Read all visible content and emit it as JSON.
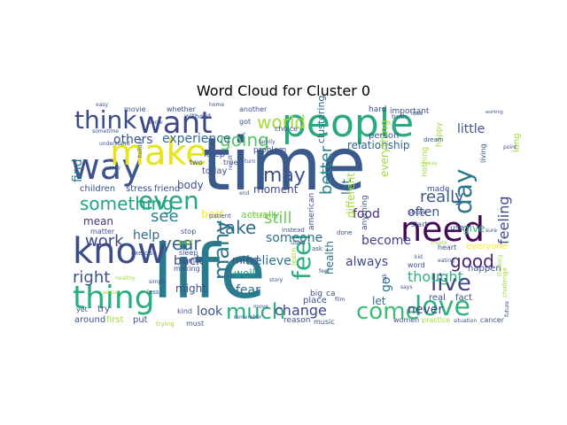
{
  "chart_data": {
    "type": "wordcloud",
    "title": "Word Cloud for Cluster 0",
    "background": "#ffffff",
    "colormap": "viridis",
    "words": [
      {
        "text": "time",
        "color": "#3b5a8c"
      },
      {
        "text": "life",
        "color": "#2a7b8e"
      },
      {
        "text": "people",
        "color": "#2aa87e"
      },
      {
        "text": "way",
        "color": "#3b528b"
      },
      {
        "text": "make",
        "color": "#e8e41a"
      },
      {
        "text": "know",
        "color": "#3a4d88"
      },
      {
        "text": "think",
        "color": "#3a4d88"
      },
      {
        "text": "want",
        "color": "#3e4989"
      },
      {
        "text": "need",
        "color": "#440a56"
      },
      {
        "text": "thing",
        "color": "#25b07c"
      },
      {
        "text": "come",
        "color": "#3fbc73"
      },
      {
        "text": "love",
        "color": "#2db27d"
      },
      {
        "text": "day",
        "color": "#2a788e"
      },
      {
        "text": "even",
        "color": "#22a884"
      },
      {
        "text": "feel",
        "color": "#29af7f"
      },
      {
        "text": "live",
        "color": "#404387"
      },
      {
        "text": "much",
        "color": "#29af7f"
      },
      {
        "text": "world",
        "color": "#a5db36"
      },
      {
        "text": "take",
        "color": "#2f6c8e"
      },
      {
        "text": "something",
        "color": "#20a386"
      },
      {
        "text": "going",
        "color": "#55c667"
      },
      {
        "text": "may",
        "color": "#3b528b"
      },
      {
        "text": "work",
        "color": "#3f4788"
      },
      {
        "text": "see",
        "color": "#26828e"
      },
      {
        "text": "year",
        "color": "#34608d"
      },
      {
        "text": "many",
        "color": "#2c738e"
      },
      {
        "text": "good",
        "color": "#482677"
      },
      {
        "text": "really",
        "color": "#38588c"
      },
      {
        "text": "still",
        "color": "#6ece58"
      },
      {
        "text": "change",
        "color": "#3f4788"
      },
      {
        "text": "right",
        "color": "#3a538b"
      },
      {
        "text": "help",
        "color": "#31678e"
      },
      {
        "text": "better",
        "color": "#25858e"
      },
      {
        "text": "find",
        "color": "#2a768e"
      },
      {
        "text": "mean",
        "color": "#46337e"
      },
      {
        "text": "fear",
        "color": "#2c738e"
      },
      {
        "text": "thought",
        "color": "#2db27d"
      },
      {
        "text": "feeling",
        "color": "#3f4788"
      },
      {
        "text": "never",
        "color": "#3f4788"
      },
      {
        "text": "look",
        "color": "#3b528b"
      },
      {
        "text": "experience",
        "color": "#31688e"
      },
      {
        "text": "others",
        "color": "#39568c"
      },
      {
        "text": "well",
        "color": "#1fa088"
      },
      {
        "text": "back",
        "color": "#3e4a89"
      },
      {
        "text": "become",
        "color": "#404387"
      },
      {
        "text": "always",
        "color": "#3f4788"
      },
      {
        "text": "often",
        "color": "#3b528b"
      },
      {
        "text": "believe",
        "color": "#2c728e"
      },
      {
        "text": "someone",
        "color": "#2c728e"
      },
      {
        "text": "moment",
        "color": "#3f4788"
      },
      {
        "text": "relationship",
        "color": "#33638d"
      },
      {
        "text": "little",
        "color": "#3b528b"
      },
      {
        "text": "give",
        "color": "#35b779"
      },
      {
        "text": "let",
        "color": "#2c728e"
      },
      {
        "text": "mind",
        "color": "#3b528b"
      },
      {
        "text": "might",
        "color": "#3b528b"
      },
      {
        "text": "best",
        "color": "#fde725"
      },
      {
        "text": "food",
        "color": "#482878"
      },
      {
        "text": "actually",
        "color": "#6ccd5a"
      },
      {
        "text": "clustering",
        "color": "#31688e"
      },
      {
        "text": "body",
        "color": "#3b528b"
      },
      {
        "text": "health",
        "color": "#2c728e"
      },
      {
        "text": "go",
        "color": "#2c728e"
      },
      {
        "text": "lot",
        "color": "#2c728e"
      },
      {
        "text": "different",
        "color": "#a0da39"
      },
      {
        "text": "everything",
        "color": "#a0da39"
      },
      {
        "text": "everyone",
        "color": "#fde725"
      },
      {
        "text": "happen",
        "color": "#3b528b"
      },
      {
        "text": "place",
        "color": "#3b528b"
      },
      {
        "text": "real",
        "color": "#3b528b"
      },
      {
        "text": "fact",
        "color": "#3b528b"
      },
      {
        "text": "kind",
        "color": "#3b528b"
      },
      {
        "text": "around",
        "color": "#3b528b"
      },
      {
        "text": "first",
        "color": "#a0da39"
      },
      {
        "text": "put",
        "color": "#3b528b"
      },
      {
        "text": "yet",
        "color": "#3b528b"
      },
      {
        "text": "try",
        "color": "#3b528b"
      },
      {
        "text": "children",
        "color": "#3b528b"
      },
      {
        "text": "stress",
        "color": "#3b528b"
      },
      {
        "text": "friend",
        "color": "#3b528b"
      },
      {
        "text": "keep",
        "color": "#3b528b"
      },
      {
        "text": "today",
        "color": "#3b528b"
      },
      {
        "text": "two",
        "color": "#3b528b"
      },
      {
        "text": "true",
        "color": "#3b528b"
      },
      {
        "text": "sleep",
        "color": "#3b528b"
      },
      {
        "text": "making",
        "color": "#3b528b"
      },
      {
        "text": "human",
        "color": "#3b528b"
      },
      {
        "text": "matter",
        "color": "#3b528b"
      },
      {
        "text": "stop",
        "color": "#3b528b"
      },
      {
        "text": "part",
        "color": "#a0da39"
      },
      {
        "text": "problem",
        "color": "#3b528b"
      },
      {
        "text": "choice",
        "color": "#3b528b"
      },
      {
        "text": "another",
        "color": "#3b528b"
      },
      {
        "text": "person",
        "color": "#3b528b"
      },
      {
        "text": "important",
        "color": "#3b528b"
      },
      {
        "text": "hard",
        "color": "#3b528b"
      },
      {
        "text": "movie",
        "color": "#3b528b"
      },
      {
        "text": "whether",
        "color": "#3b528b"
      },
      {
        "text": "without",
        "color": "#3b528b"
      },
      {
        "text": "got",
        "color": "#3b528b"
      },
      {
        "text": "american",
        "color": "#3b528b"
      },
      {
        "text": "anything",
        "color": "#3b528b"
      },
      {
        "text": "made",
        "color": "#3b528b"
      },
      {
        "text": "nothing",
        "color": "#a0da39"
      },
      {
        "text": "living",
        "color": "#3b528b"
      },
      {
        "text": "long",
        "color": "#a0da39"
      },
      {
        "text": "happy",
        "color": "#a0da39"
      },
      {
        "text": "use",
        "color": "#3b528b"
      },
      {
        "text": "word",
        "color": "#3b528b"
      },
      {
        "text": "show",
        "color": "#3b528b"
      },
      {
        "text": "start",
        "color": "#3b528b"
      },
      {
        "text": "heart",
        "color": "#3b528b"
      },
      {
        "text": "done",
        "color": "#3b528b"
      },
      {
        "text": "instead",
        "color": "#3b528b"
      },
      {
        "text": "used",
        "color": "#3b528b"
      },
      {
        "text": "ask",
        "color": "#3b528b"
      },
      {
        "text": "learn",
        "color": "#a0da39"
      },
      {
        "text": "reason",
        "color": "#3b528b"
      },
      {
        "text": "music",
        "color": "#3b528b"
      },
      {
        "text": "women",
        "color": "#3b528b"
      },
      {
        "text": "practice",
        "color": "#a0da39"
      },
      {
        "text": "cancer",
        "color": "#3b528b"
      },
      {
        "text": "must",
        "color": "#3b528b"
      },
      {
        "text": "trying",
        "color": "#a0da39"
      },
      {
        "text": "patient",
        "color": "#3b528b"
      },
      {
        "text": "exercise",
        "color": "#3b528b"
      },
      {
        "text": "healthy",
        "color": "#a0da39"
      },
      {
        "text": "less",
        "color": "#3b528b"
      },
      {
        "text": "simply",
        "color": "#3b528b"
      },
      {
        "text": "sense",
        "color": "#a0da39"
      },
      {
        "text": "easy",
        "color": "#3b528b"
      },
      {
        "text": "sometime",
        "color": "#3b528b"
      },
      {
        "text": "understand",
        "color": "#3b528b"
      },
      {
        "text": "whole",
        "color": "#3b528b"
      },
      {
        "text": "rather",
        "color": "#3b528b"
      },
      {
        "text": "holiday",
        "color": "#3b528b"
      },
      {
        "text": "result",
        "color": "#3b528b"
      },
      {
        "text": "home",
        "color": "#3b528b"
      },
      {
        "text": "family",
        "color": "#3b528b"
      },
      {
        "text": "turn",
        "color": "#3b528b"
      },
      {
        "text": "end",
        "color": "#3b528b"
      },
      {
        "text": "question",
        "color": "#a0da39"
      },
      {
        "text": "story",
        "color": "#3b528b"
      },
      {
        "text": "move",
        "color": "#3b528b"
      },
      {
        "text": "remember",
        "color": "#3b528b"
      },
      {
        "text": "feel",
        "color": "#3b528b"
      },
      {
        "text": "big",
        "color": "#3b528b"
      },
      {
        "text": "ca",
        "color": "#3b528b"
      },
      {
        "text": "film",
        "color": "#3b528b"
      },
      {
        "text": "truth",
        "color": "#3b528b"
      },
      {
        "text": "dream",
        "color": "#3b528b"
      },
      {
        "text": "idea",
        "color": "#3b528b"
      },
      {
        "text": "create",
        "color": "#a0da39"
      },
      {
        "text": "eating",
        "color": "#3b528b"
      },
      {
        "text": "kid",
        "color": "#3b528b"
      },
      {
        "text": "talk",
        "color": "#3b528b"
      },
      {
        "text": "says",
        "color": "#3b528b"
      },
      {
        "text": "future",
        "color": "#3b528b"
      },
      {
        "text": "point",
        "color": "#3b528b"
      },
      {
        "text": "sure",
        "color": "#3b528b"
      },
      {
        "text": "away",
        "color": "#a0da39"
      },
      {
        "text": "working",
        "color": "#3b528b"
      },
      {
        "text": "challenge",
        "color": "#a0da39"
      },
      {
        "text": "thinking",
        "color": "#a0da39"
      },
      {
        "text": "situation",
        "color": "#3b528b"
      }
    ]
  }
}
